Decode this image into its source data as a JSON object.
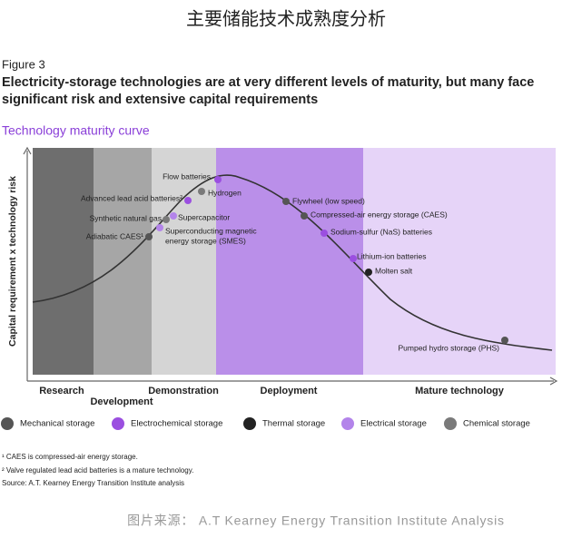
{
  "header": {
    "title": "主要储能技术成熟度分析",
    "figure": "Figure 3",
    "headline": [
      "Electricity-storage technologies are at very different levels of maturity, but many face",
      "significant risk and extensive capital requirements"
    ],
    "subtitle": "Technology maturity curve"
  },
  "diagram": {
    "y_axis_label": "Capital requirement x technology risk",
    "stages": [
      {
        "label": "Research",
        "color": "#6e6e6e"
      },
      {
        "label": "Development",
        "color": "#a6a6a6"
      },
      {
        "label": "Demonstration",
        "color": "#d5d5d5"
      },
      {
        "label": "Deployment",
        "color": "#ba8fe9"
      },
      {
        "label": "Mature technology",
        "color": "#e6d4f8"
      }
    ],
    "points": [
      {
        "lines": [
          "Adiabatic CAES¹"
        ],
        "category": 0
      },
      {
        "lines": [
          "Synthetic natural gas"
        ],
        "category": 4
      },
      {
        "lines": [
          "Supercapacitor"
        ],
        "category": 3
      },
      {
        "lines": [
          "Superconducting magnetic",
          "energy storage (SMES)"
        ],
        "category": 3
      },
      {
        "lines": [
          "Advanced lead acid batteries²"
        ],
        "category": 1
      },
      {
        "lines": [
          "Hydrogen"
        ],
        "category": 4
      },
      {
        "lines": [
          "Flow batteries"
        ],
        "category": 1
      },
      {
        "lines": [
          "Flywheel (low speed)"
        ],
        "category": 0
      },
      {
        "lines": [
          "Compressed-air energy storage (CAES)"
        ],
        "category": 0
      },
      {
        "lines": [
          "Sodium-sulfur (NaS) batteries"
        ],
        "category": 1
      },
      {
        "lines": [
          "Lithium-ion batteries"
        ],
        "category": 1
      },
      {
        "lines": [
          "Molten salt"
        ],
        "category": 2
      },
      {
        "lines": [
          "Pumped hydro storage (PHS)"
        ],
        "category": 0
      }
    ],
    "legend": [
      {
        "label": "Mechanical storage",
        "color": "#555555"
      },
      {
        "label": "Electrochemical storage",
        "color": "#9b4fe0"
      },
      {
        "label": "Thermal storage",
        "color": "#222222"
      },
      {
        "label": "Electrical storage",
        "color": "#b384ea"
      },
      {
        "label": "Chemical storage",
        "color": "#7a7a7a"
      }
    ]
  },
  "footnotes": [
    "¹ CAES is compressed-air energy storage.",
    "² Valve regulated lead acid batteries is a mature technology.",
    "Source: A.T. Kearney Energy Transition Institute analysis"
  ],
  "source": "图片来源： A.T Kearney Energy Transition Institute Analysis"
}
